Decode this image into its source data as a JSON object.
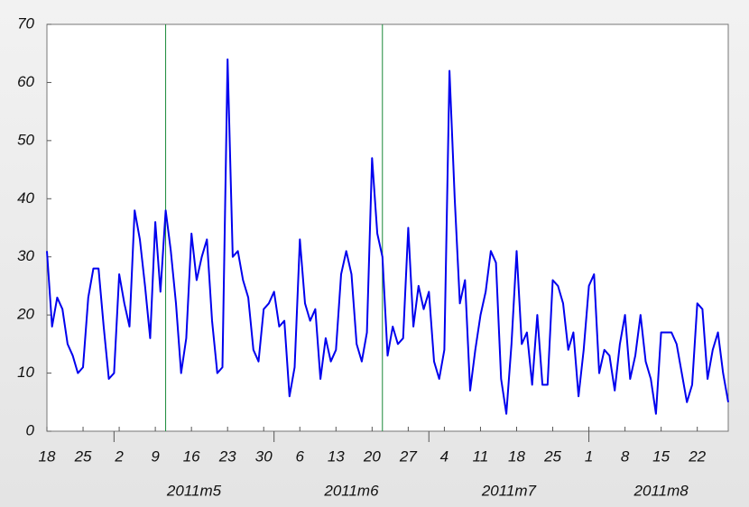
{
  "chart_data": {
    "type": "line",
    "categories": [
      "18",
      null,
      null,
      null,
      null,
      null,
      null,
      "25",
      null,
      null,
      null,
      null,
      null,
      null,
      "2",
      null,
      null,
      null,
      null,
      null,
      null,
      "9",
      null,
      null,
      null,
      null,
      null,
      null,
      "16",
      null,
      null,
      null,
      null,
      null,
      null,
      "23",
      null,
      null,
      null,
      null,
      null,
      null,
      "30",
      null,
      null,
      null,
      null,
      null,
      null,
      "6",
      null,
      null,
      null,
      null,
      null,
      null,
      "13",
      null,
      null,
      null,
      null,
      null,
      null,
      "20",
      null,
      null,
      null,
      null,
      null,
      null,
      "27",
      null,
      null,
      null,
      null,
      null,
      null,
      "4",
      null,
      null,
      null,
      null,
      null,
      null,
      "11",
      null,
      null,
      null,
      null,
      null,
      null,
      "18",
      null,
      null,
      null,
      null,
      null,
      null,
      "25",
      null,
      null,
      null,
      null,
      null,
      null,
      "1",
      null,
      null,
      null,
      null,
      null,
      null,
      "8",
      null,
      null,
      null,
      null,
      null,
      null,
      "15",
      null,
      null,
      null,
      null,
      null,
      null,
      "22",
      null,
      null,
      null,
      null,
      null,
      null
    ],
    "values": [
      31,
      18,
      23,
      21,
      15,
      13,
      10,
      11,
      23,
      28,
      28,
      18,
      9,
      10,
      27,
      22,
      18,
      38,
      33,
      25,
      16,
      36,
      24,
      38,
      31,
      22,
      10,
      16,
      34,
      26,
      30,
      33,
      19,
      10,
      11,
      64,
      30,
      31,
      26,
      23,
      14,
      12,
      21,
      22,
      24,
      18,
      19,
      6,
      11,
      33,
      22,
      19,
      21,
      9,
      16,
      12,
      14,
      27,
      31,
      27,
      15,
      12,
      17,
      47,
      34,
      30,
      13,
      18,
      15,
      16,
      35,
      18,
      25,
      21,
      24,
      12,
      9,
      14,
      62,
      40,
      22,
      26,
      7,
      14,
      20,
      24,
      31,
      29,
      9,
      3,
      15,
      31,
      15,
      17,
      8,
      20,
      8,
      8,
      26,
      25,
      22,
      14,
      17,
      6,
      14,
      25,
      27,
      10,
      14,
      13,
      7,
      15,
      20,
      9,
      13,
      20,
      12,
      9,
      3,
      17,
      17,
      17,
      15,
      10,
      5,
      8,
      22,
      21,
      9,
      14,
      17,
      10,
      5
    ],
    "color": "#0000ee",
    "months": [
      {
        "label": "2011m5",
        "start": 13
      },
      {
        "label": "2011m6",
        "start": 44
      },
      {
        "label": "2011m7",
        "start": 74
      },
      {
        "label": "2011m8",
        "start": 105
      }
    ],
    "vlines": [
      23,
      65
    ],
    "vline_color": "#1a8a3a",
    "ylim": [
      0,
      70
    ],
    "yticks": [
      0,
      10,
      20,
      30,
      40,
      50,
      60,
      70
    ]
  }
}
